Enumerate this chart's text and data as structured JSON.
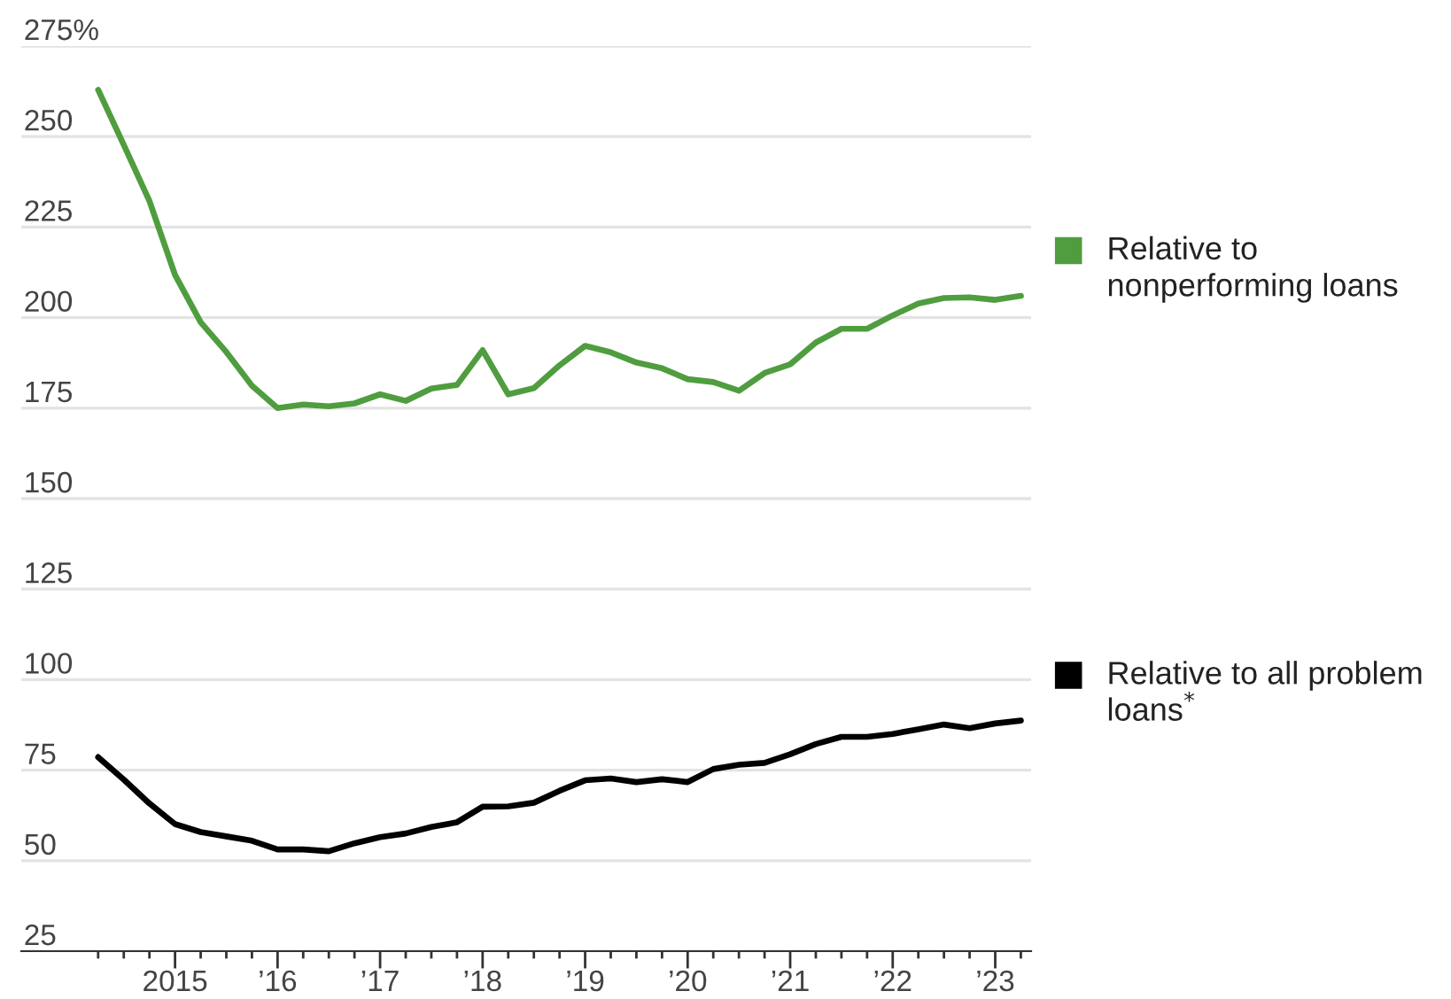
{
  "chart_data": {
    "type": "line",
    "x": [
      2014.25,
      2014.5,
      2014.75,
      2015,
      2015.25,
      2015.5,
      2015.75,
      2016,
      2016.25,
      2016.5,
      2016.75,
      2017,
      2017.25,
      2017.5,
      2017.75,
      2018,
      2018.25,
      2018.5,
      2018.75,
      2019,
      2019.25,
      2019.5,
      2019.75,
      2020,
      2020.25,
      2020.5,
      2020.75,
      2021,
      2021.25,
      2021.5,
      2021.75,
      2022,
      2022.25,
      2022.5,
      2022.75,
      2023,
      2023.25
    ],
    "series": [
      {
        "name": "Relative to nonperforming loans",
        "color": "#4f9d3f",
        "values": [
          262.9,
          247.7,
          232.2,
          211.8,
          198.7,
          190.5,
          181.2,
          175.0,
          176.0,
          175.5,
          176.3,
          178.8,
          177.0,
          180.4,
          181.4,
          191.0,
          178.8,
          180.5,
          186.8,
          192.2,
          190.4,
          187.6,
          186.0,
          183.0,
          182.2,
          179.8,
          184.7,
          187.1,
          193.1,
          196.9,
          196.9,
          200.6,
          203.9,
          205.4,
          205.6,
          204.9,
          206.0
        ]
      },
      {
        "name": "Relative to all problem loans$^{*}$",
        "color": "#000000",
        "values": [
          78.6,
          72.4,
          65.8,
          60.1,
          57.9,
          56.7,
          55.5,
          53.1,
          53.1,
          52.6,
          54.8,
          56.5,
          57.5,
          59.3,
          60.6,
          64.9,
          65.0,
          66.0,
          69.3,
          72.2,
          72.7,
          71.7,
          72.5,
          71.7,
          75.3,
          76.5,
          77.0,
          79.4,
          82.2,
          84.2,
          84.2,
          85.0,
          86.3,
          87.6,
          86.6,
          87.9,
          88.7
        ]
      }
    ],
    "xlim": [
      2013.5,
      2023.35
    ],
    "ylim": [
      25,
      275
    ],
    "xticks": [
      {
        "value": 2014.25,
        "label": null
      },
      {
        "value": 2014.5,
        "label": null
      },
      {
        "value": 2014.75,
        "label": null
      },
      {
        "value": 2015,
        "label": "2015"
      },
      {
        "value": 2015.25,
        "label": null
      },
      {
        "value": 2015.5,
        "label": null
      },
      {
        "value": 2015.75,
        "label": null
      },
      {
        "value": 2016,
        "label": "’16"
      },
      {
        "value": 2016.25,
        "label": null
      },
      {
        "value": 2016.5,
        "label": null
      },
      {
        "value": 2016.75,
        "label": null
      },
      {
        "value": 2017,
        "label": "’17"
      },
      {
        "value": 2017.25,
        "label": null
      },
      {
        "value": 2017.5,
        "label": null
      },
      {
        "value": 2017.75,
        "label": null
      },
      {
        "value": 2018,
        "label": "’18"
      },
      {
        "value": 2018.25,
        "label": null
      },
      {
        "value": 2018.5,
        "label": null
      },
      {
        "value": 2018.75,
        "label": null
      },
      {
        "value": 2019,
        "label": "’19"
      },
      {
        "value": 2019.25,
        "label": null
      },
      {
        "value": 2019.5,
        "label": null
      },
      {
        "value": 2019.75,
        "label": null
      },
      {
        "value": 2020,
        "label": "’20"
      },
      {
        "value": 2020.25,
        "label": null
      },
      {
        "value": 2020.5,
        "label": null
      },
      {
        "value": 2020.75,
        "label": null
      },
      {
        "value": 2021,
        "label": "’21"
      },
      {
        "value": 2021.25,
        "label": null
      },
      {
        "value": 2021.5,
        "label": null
      },
      {
        "value": 2021.75,
        "label": null
      },
      {
        "value": 2022,
        "label": "’22"
      },
      {
        "value": 2022.25,
        "label": null
      },
      {
        "value": 2022.5,
        "label": null
      },
      {
        "value": 2022.75,
        "label": null
      },
      {
        "value": 2023,
        "label": "’23"
      },
      {
        "value": 2023.25,
        "label": null
      }
    ],
    "yticks": [
      25,
      50,
      75,
      100,
      125,
      150,
      175,
      200,
      225,
      250,
      {
        "value": 275,
        "label": "275%"
      }
    ],
    "grid": "y",
    "legend": "right"
  }
}
